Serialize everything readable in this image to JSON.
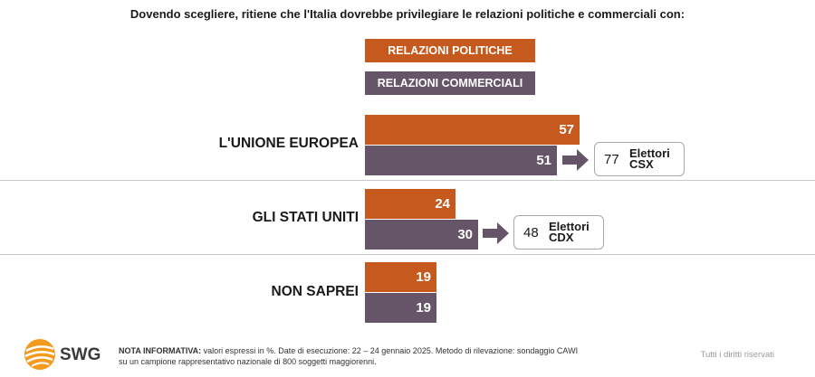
{
  "header": {
    "title": "Dovendo scegliere, ritiene che l'Italia dovrebbe privilegiare le relazioni politiche e commerciali con:"
  },
  "legend": [
    {
      "label": "RELAZIONI POLITICHE",
      "color": "#c65a1e"
    },
    {
      "label": "RELAZIONI COMMERCIALI",
      "color": "#665568"
    }
  ],
  "chart_data": {
    "type": "bar",
    "orientation": "horizontal",
    "categories": [
      "L'UNIONE EUROPEA",
      "GLI STATI UNITI",
      "NON SAPREI"
    ],
    "series": [
      {
        "name": "RELAZIONI POLITICHE",
        "values": [
          57,
          24,
          19
        ],
        "color": "#c65a1e"
      },
      {
        "name": "RELAZIONI COMMERCIALI",
        "values": [
          51,
          30,
          19
        ],
        "color": "#665568"
      }
    ],
    "unit": "%",
    "annotations": [
      {
        "category": "L'UNIONE EUROPEA",
        "value": "77",
        "label_line1": "Elettori",
        "label_line2": "CSX"
      },
      {
        "category": "GLI STATI UNITI",
        "value": "48",
        "label_line1": "Elettori",
        "label_line2": "CDX"
      }
    ]
  },
  "footer": {
    "logo_text": "SWG",
    "note_bold": "NOTA INFORMATIVA:",
    "note_line1": "valori espressi in %. Date di esecuzione: 22 – 24 gennaio 2025. Metodo di rilevazione: sondaggio CAWI",
    "note_line2": "su un campione rappresentativo nazionale di 800 soggetti maggiorenni.",
    "rights": "Tutti i diritti riservati"
  }
}
